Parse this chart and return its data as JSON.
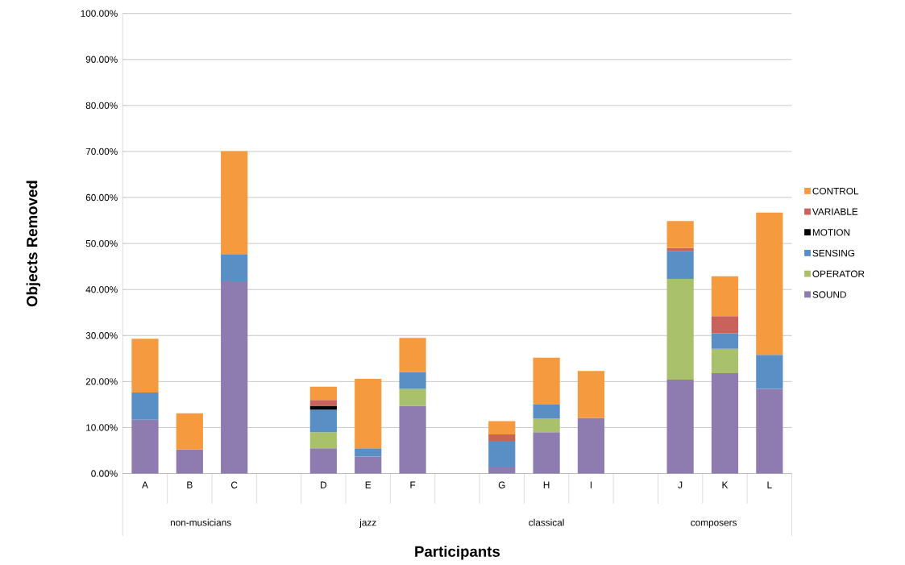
{
  "chart_data": {
    "type": "bar",
    "stacked": true,
    "xlabel": "Participants",
    "ylabel": "Objects Removed",
    "categories": [
      "A",
      "B",
      "C",
      null,
      "D",
      "E",
      "F",
      null,
      "G",
      "H",
      "I",
      null,
      "J",
      "K",
      "L"
    ],
    "series": [
      {
        "name": "SOUND",
        "color": "#8e7cb0",
        "values": [
          11.7,
          5.2,
          41.8,
          null,
          5.5,
          3.7,
          14.7,
          null,
          1.3,
          9.0,
          12.1,
          null,
          20.4,
          21.8,
          18.4
        ]
      },
      {
        "name": "OPERATOR",
        "color": "#a9c16a",
        "values": [
          0,
          0,
          0,
          null,
          3.5,
          0,
          3.7,
          null,
          0,
          3.0,
          0,
          null,
          21.9,
          5.3,
          0
        ]
      },
      {
        "name": "SENSING",
        "color": "#5a8fc6",
        "values": [
          5.9,
          0,
          5.9,
          null,
          4.9,
          1.8,
          3.7,
          null,
          5.8,
          3.0,
          0,
          null,
          6.0,
          3.4,
          7.4
        ]
      },
      {
        "name": "MOTION",
        "color": "#000000",
        "values": [
          0,
          0,
          0,
          null,
          0.8,
          0,
          0,
          null,
          0,
          0,
          0,
          null,
          0,
          0,
          0
        ]
      },
      {
        "name": "VARIABLE",
        "color": "#c9625a",
        "values": [
          0,
          0,
          0,
          null,
          1.3,
          0,
          0,
          null,
          1.4,
          0,
          0,
          null,
          0.7,
          3.7,
          0
        ]
      },
      {
        "name": "CONTROL",
        "color": "#f59a3e",
        "values": [
          11.7,
          7.9,
          22.4,
          null,
          2.9,
          15.1,
          7.4,
          null,
          2.9,
          10.2,
          10.2,
          null,
          5.9,
          8.7,
          30.9
        ]
      }
    ],
    "ylim": [
      0,
      100
    ],
    "yticks": [
      {
        "value": 0,
        "label": "0.00%"
      },
      {
        "value": 10,
        "label": "10.00%"
      },
      {
        "value": 20,
        "label": "20.00%"
      },
      {
        "value": 30,
        "label": "30.00%"
      },
      {
        "value": 40,
        "label": "40.00%"
      },
      {
        "value": 50,
        "label": "50.00%"
      },
      {
        "value": 60,
        "label": "60.00%"
      },
      {
        "value": 70,
        "label": "70.00%"
      },
      {
        "value": 80,
        "label": "80.00%"
      },
      {
        "value": 90,
        "label": "90.00%"
      },
      {
        "value": 100,
        "label": "100.00%"
      }
    ],
    "grid": "y",
    "legend": "right",
    "annotations": [
      "non-musicians",
      "jazz",
      "classical",
      "composers"
    ]
  }
}
